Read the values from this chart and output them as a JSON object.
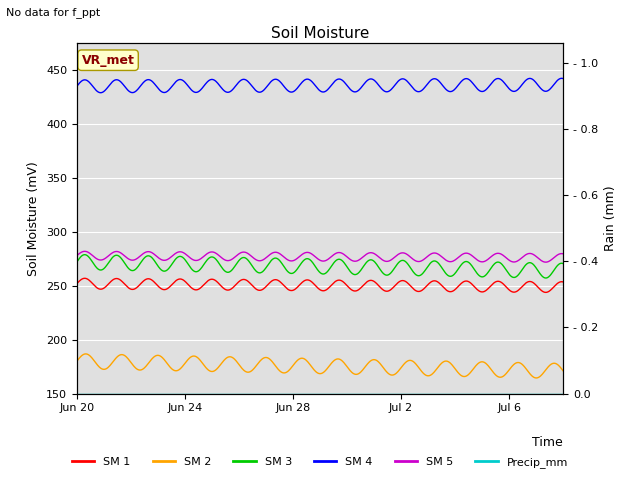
{
  "title": "Soil Moisture",
  "xlabel": "Time",
  "ylabel_left": "Soil Moisture (mV)",
  "ylabel_right": "Rain (mm)",
  "no_data_text": "No data for f_ppt",
  "vr_met_label": "VR_met",
  "ylim_left": [
    150,
    475
  ],
  "ylim_right": [
    0.0,
    1.06
  ],
  "yticks_left": [
    150,
    200,
    250,
    300,
    350,
    400,
    450
  ],
  "yticks_right": [
    0.0,
    0.2,
    0.4,
    0.6,
    0.8,
    1.0
  ],
  "n_days": 18,
  "sm1_base": 252,
  "sm1_amp": 5,
  "sm1_freq": 0.85,
  "sm1_trend": -0.18,
  "sm2_base": 180,
  "sm2_amp": 7,
  "sm2_freq": 0.75,
  "sm2_trend": -0.5,
  "sm3_base": 272,
  "sm3_amp": 7,
  "sm3_freq": 0.85,
  "sm3_trend": -0.45,
  "sm4_base": 435,
  "sm4_amp": 6,
  "sm4_freq": 0.85,
  "sm4_trend": 0.08,
  "sm5_base": 278,
  "sm5_amp": 4,
  "sm5_freq": 0.85,
  "sm5_trend": -0.12,
  "color_sm1": "#ff0000",
  "color_sm2": "#ffa500",
  "color_sm3": "#00cc00",
  "color_sm4": "#0000ff",
  "color_sm5": "#cc00cc",
  "color_precip": "#00cccc",
  "bg_color": "#e0e0e0",
  "fig_color": "#ffffff",
  "linewidth": 1.0,
  "legend_labels": [
    "SM 1",
    "SM 2",
    "SM 3",
    "SM 4",
    "SM 5",
    "Precip_mm"
  ],
  "xtick_labels": [
    "Jun 20",
    "Jun 24",
    "Jun 28",
    "Jul 2",
    "Jul 6"
  ],
  "xtick_days": [
    0,
    4,
    8,
    12,
    16
  ]
}
